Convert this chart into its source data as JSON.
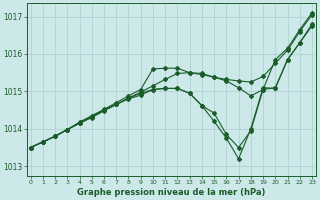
{
  "xlabel": "Graphe pression niveau de la mer (hPa)",
  "background_color": "#cce8e8",
  "grid_color": "#aacece",
  "line_color": "#1a5c2a",
  "ylim": [
    1012.75,
    1017.35
  ],
  "xlim": [
    -0.3,
    23.3
  ],
  "xticks": [
    0,
    1,
    2,
    3,
    4,
    5,
    6,
    7,
    8,
    9,
    10,
    11,
    12,
    13,
    14,
    15,
    16,
    17,
    18,
    19,
    20,
    21,
    22,
    23
  ],
  "yticks": [
    1013,
    1014,
    1015,
    1016,
    1017
  ],
  "series": [
    [
      1013.5,
      1013.65,
      1013.8,
      1013.98,
      1014.15,
      1014.32,
      1014.5,
      1014.65,
      1014.82,
      1014.98,
      1015.15,
      1015.32,
      1015.48,
      1015.5,
      1015.45,
      1015.38,
      1015.32,
      1015.28,
      1015.25,
      1015.4,
      1015.75,
      1016.1,
      1016.6,
      1017.05
    ],
    [
      1013.5,
      1013.65,
      1013.8,
      1013.98,
      1014.15,
      1014.3,
      1014.48,
      1014.65,
      1014.8,
      1014.9,
      1015.05,
      1015.08,
      1015.08,
      1014.95,
      1014.62,
      1014.42,
      1013.85,
      1013.5,
      1013.95,
      1015.05,
      1015.1,
      1015.85,
      1016.3,
      1016.75
    ],
    [
      1013.5,
      1013.65,
      1013.8,
      1013.98,
      1014.18,
      1014.35,
      1014.52,
      1014.7,
      1014.88,
      1015.05,
      1015.6,
      1015.62,
      1015.62,
      1015.5,
      1015.48,
      1015.38,
      1015.28,
      1015.1,
      1014.88,
      1015.05,
      1015.85,
      1016.15,
      1016.65,
      1017.1
    ],
    [
      1013.5,
      1013.65,
      1013.8,
      1013.98,
      1014.15,
      1014.32,
      1014.5,
      1014.65,
      1014.82,
      1014.95,
      1015.05,
      1015.08,
      1015.08,
      1014.95,
      1014.62,
      1014.2,
      1013.75,
      1013.2,
      1014.0,
      1015.1,
      1015.08,
      1015.85,
      1016.3,
      1016.8
    ]
  ]
}
